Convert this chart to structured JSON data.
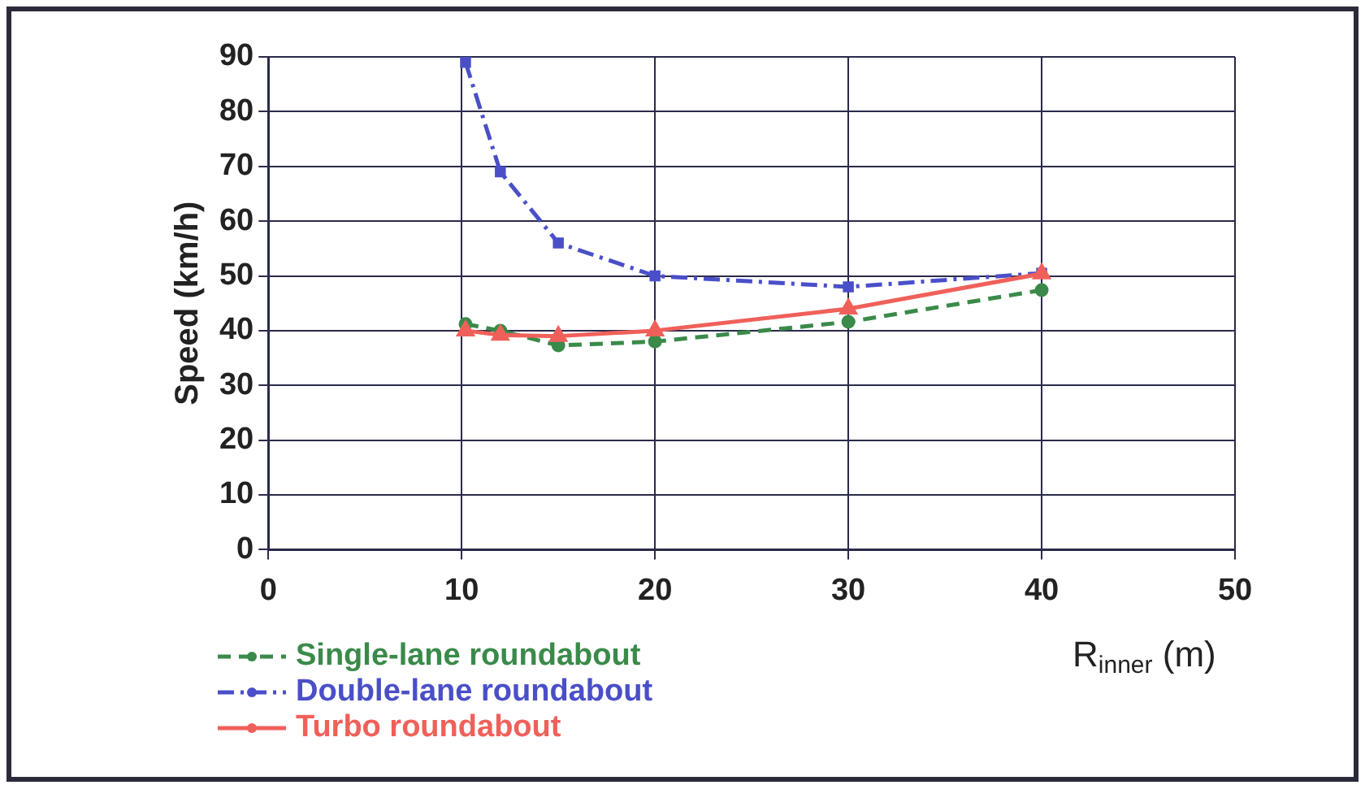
{
  "chart_data": {
    "type": "line",
    "xlabel": "R$_{inner}$ (m)",
    "ylabel": "Speed (km/h)",
    "xlim": [
      0,
      50
    ],
    "xticks": [
      0,
      10,
      20,
      30,
      40,
      50
    ],
    "ylim": [
      0,
      90
    ],
    "yticks": [
      0,
      10,
      20,
      30,
      40,
      50,
      60,
      70,
      80,
      90
    ],
    "grid": true,
    "legend": "bottom left",
    "x": [
      10.2,
      12,
      15,
      20,
      30,
      40
    ],
    "series": [
      {
        "name": "Single-lane roundabout",
        "color": "#3a8a4a",
        "values": [
          41.2,
          40,
          37.3,
          38,
          41.6,
          47.4
        ],
        "line_style": "dashed",
        "marker": "circle"
      },
      {
        "name": "Double-lane roundabout",
        "color": "#4a4fc8",
        "values": [
          89,
          69,
          56,
          50,
          48,
          50.5
        ],
        "line_style": "dashdot",
        "marker": "square"
      },
      {
        "name": "Turbo roundabout",
        "color": "#f0605a",
        "values": [
          40,
          39.2,
          39,
          40,
          44,
          50.4
        ],
        "line_style": "solid",
        "marker": "triangle"
      }
    ]
  }
}
